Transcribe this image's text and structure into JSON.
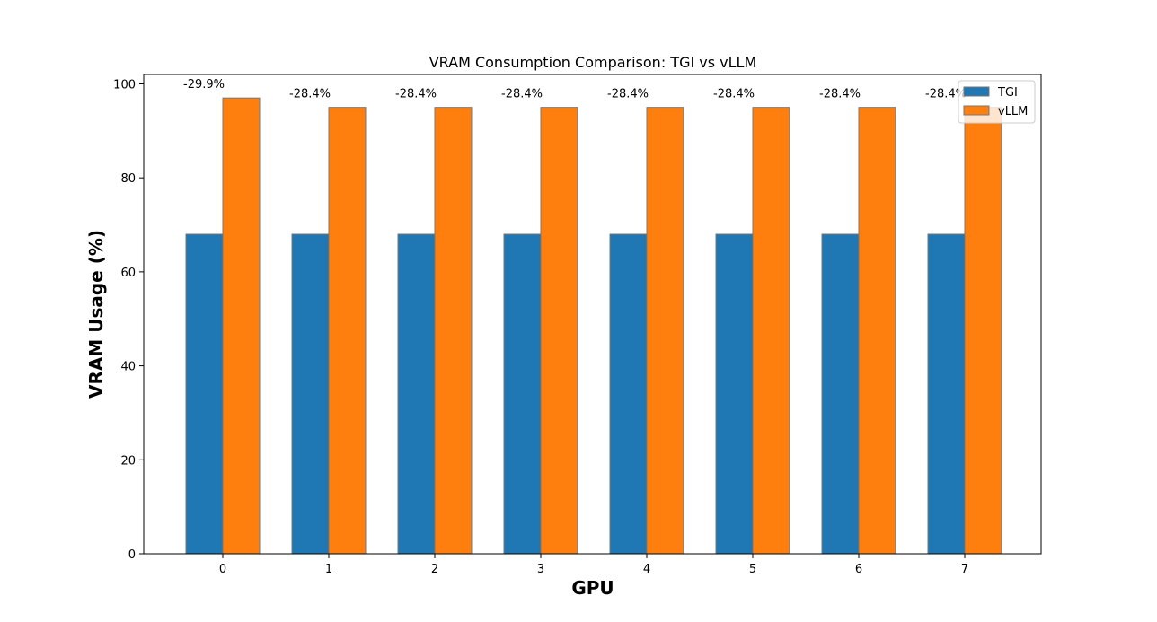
{
  "chart_data": {
    "type": "bar",
    "title": "VRAM Consumption Comparison: TGI vs vLLM",
    "xlabel": "GPU",
    "ylabel": "VRAM Usage (%)",
    "categories": [
      "0",
      "1",
      "2",
      "3",
      "4",
      "5",
      "6",
      "7"
    ],
    "series": [
      {
        "name": "TGI",
        "color": "#1f77b4",
        "values": [
          68,
          68,
          68,
          68,
          68,
          68,
          68,
          68
        ]
      },
      {
        "name": "vLLM",
        "color": "#ff7f0e",
        "values": [
          97,
          95,
          95,
          95,
          95,
          95,
          95,
          95
        ]
      }
    ],
    "annotations": [
      "-29.9%",
      "-28.4%",
      "-28.4%",
      "-28.4%",
      "-28.4%",
      "-28.4%",
      "-28.4%",
      "-28.4%"
    ],
    "ylim": [
      0,
      102
    ],
    "yticks": [
      0,
      20,
      40,
      60,
      80,
      100
    ],
    "grid": false,
    "legend_position": "top-right"
  }
}
